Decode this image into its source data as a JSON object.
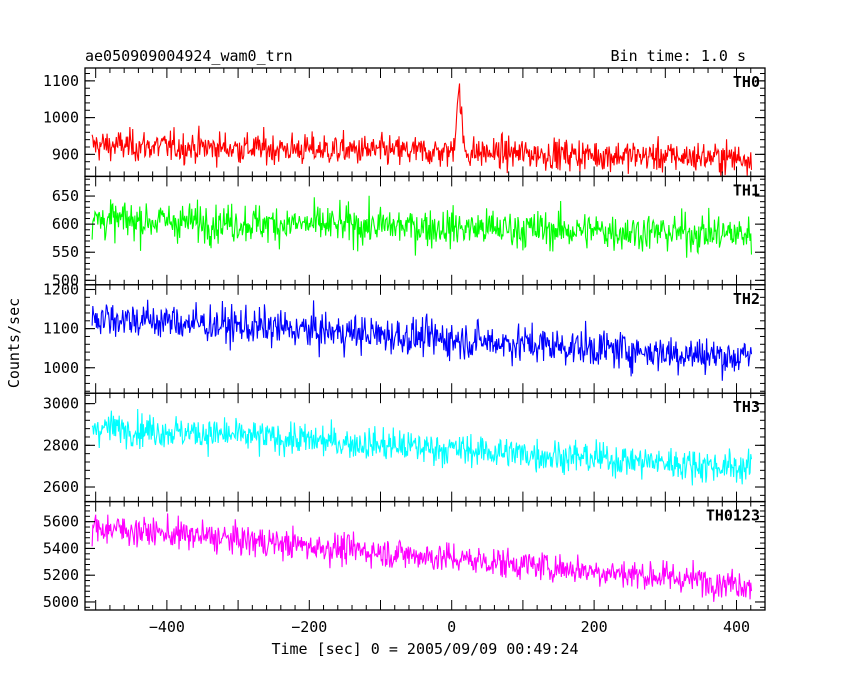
{
  "header": {
    "title": "ae050909004924_wam0_trn",
    "bin_time": "Bin time: 1.0 s"
  },
  "chart_data": {
    "type": "line",
    "title": "ae050909004924_wam0_trn",
    "xlabel": "Time [sec] 0 = 2005/09/09 00:49:24",
    "ylabel": "Counts/sec",
    "xlim": [
      -515,
      440
    ],
    "x_ticks": [
      -400,
      -200,
      0,
      200,
      400
    ],
    "x_tick_labels": [
      "−400",
      "−200",
      "0",
      "200",
      "400"
    ],
    "x_start": -505,
    "x_end": 421,
    "x_step": 1,
    "grid": false,
    "panels": [
      {
        "name": "TH0",
        "color": "#ff0000",
        "ylim": [
          840,
          1135
        ],
        "yticks": [
          900,
          1000,
          1100
        ],
        "trend_start": 925,
        "trend_end": 890,
        "noise": 30,
        "burst": {
          "peak_time": 10,
          "amplitude": 165,
          "width": 5
        }
      },
      {
        "name": "TH1",
        "color": "#00ff00",
        "ylim": [
          492,
          685
        ],
        "yticks": [
          500,
          550,
          600,
          650
        ],
        "trend_start": 608,
        "trend_end": 582,
        "noise": 24
      },
      {
        "name": "TH2",
        "color": "#0000ff",
        "ylim": [
          935,
          1212
        ],
        "yticks": [
          1000,
          1100,
          1200
        ],
        "trend_start": 1130,
        "trend_end": 1025,
        "noise": 34
      },
      {
        "name": "TH3",
        "color": "#00ffff",
        "ylim": [
          2530,
          3050
        ],
        "yticks": [
          2600,
          2800,
          3000
        ],
        "trend_start": 2890,
        "trend_end": 2690,
        "noise": 55
      },
      {
        "name": "TH0123",
        "color": "#ff00ff",
        "ylim": [
          4940,
          5750
        ],
        "yticks": [
          5000,
          5200,
          5400,
          5600
        ],
        "trend_start": 5560,
        "trend_end": 5130,
        "noise": 80
      }
    ]
  }
}
